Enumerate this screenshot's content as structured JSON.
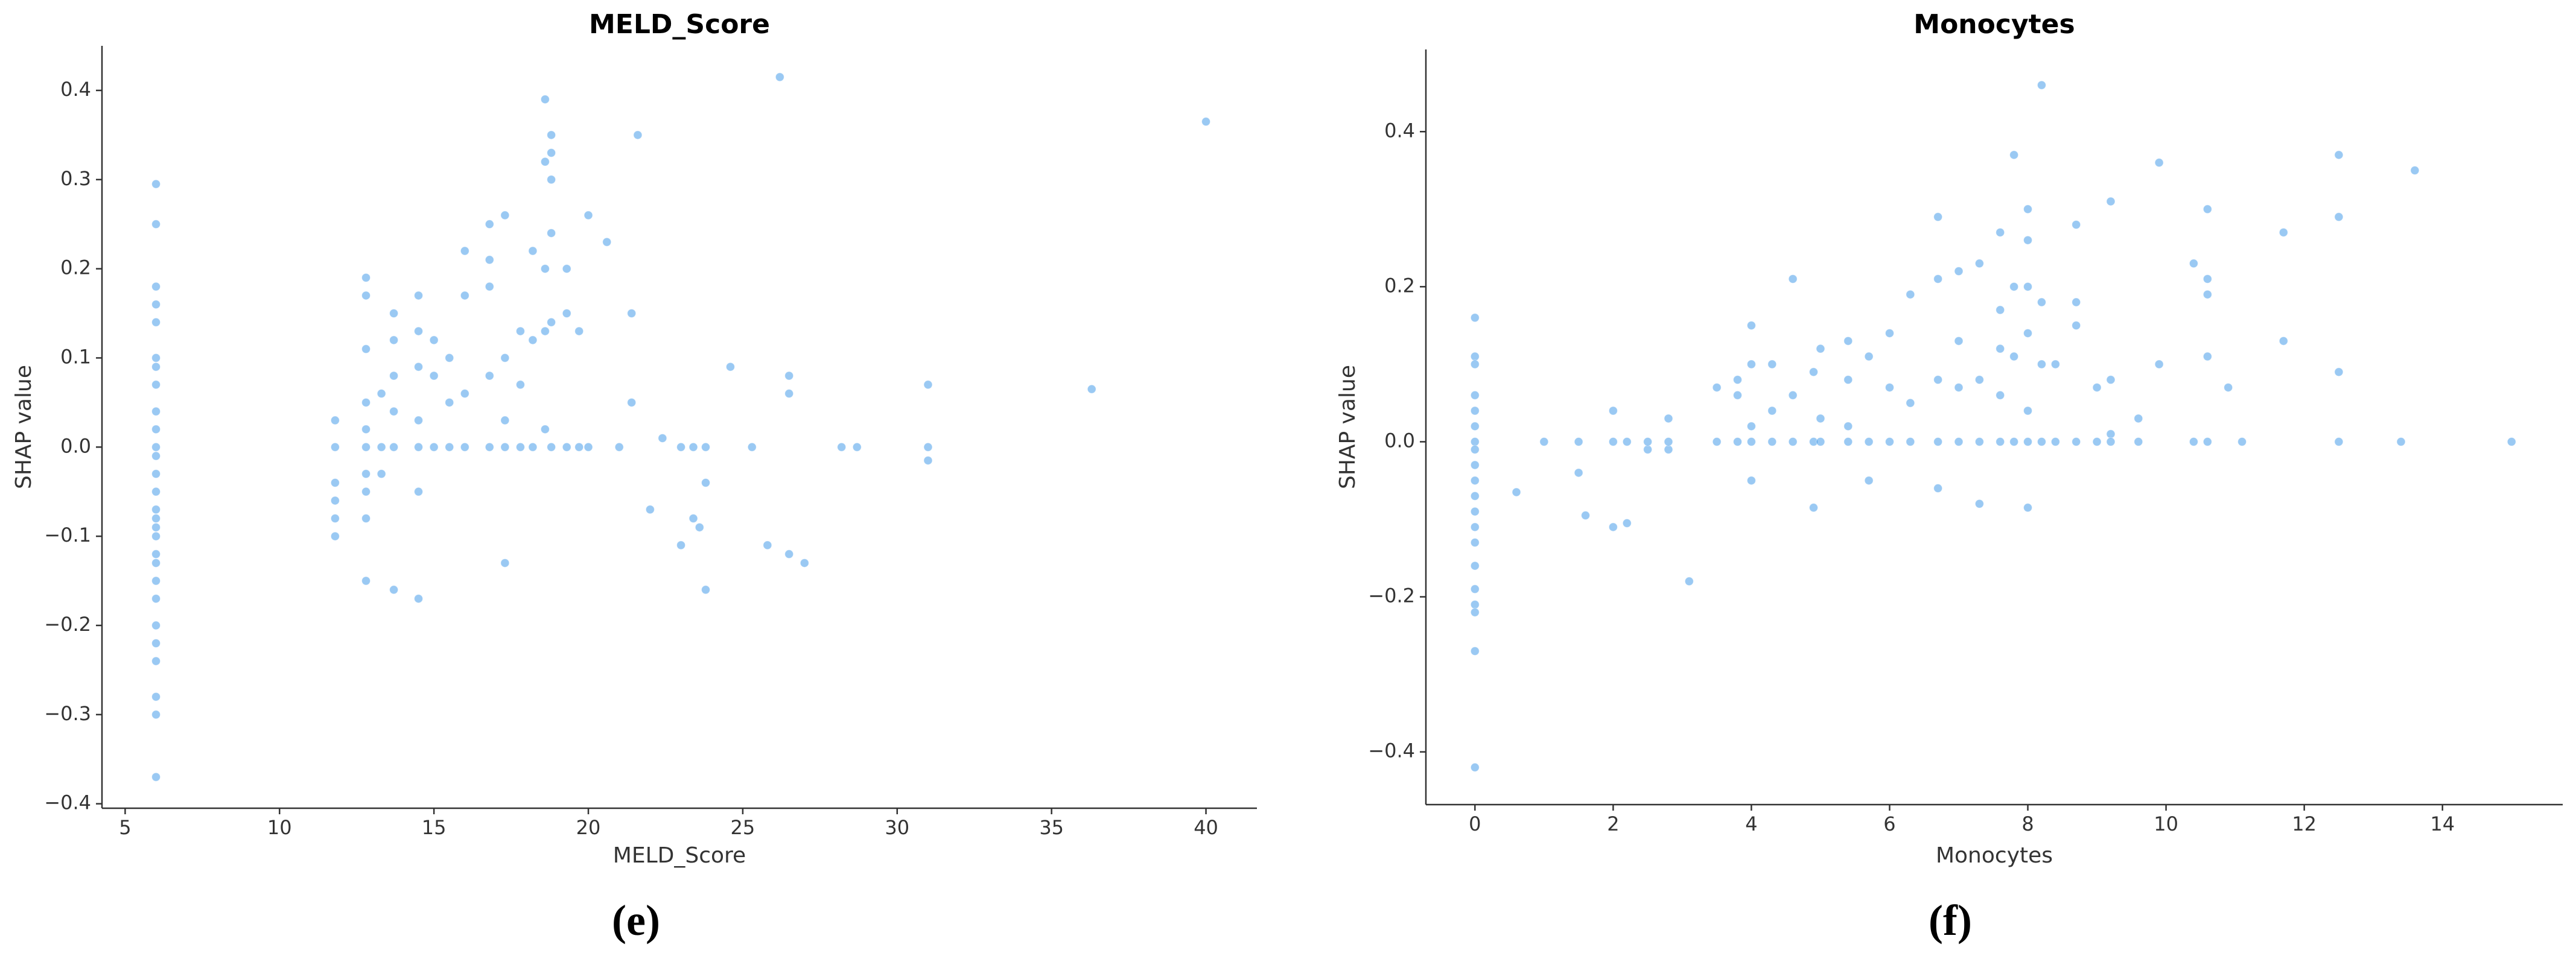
{
  "chart_data": [
    {
      "type": "scatter",
      "title": "MELD_Score",
      "x_label": "MELD_Score",
      "y_label": "SHAP value",
      "caption": "(e)",
      "color": "#1e88e5",
      "xlim": [
        4.25,
        41.65
      ],
      "ylim": [
        -0.405,
        0.45
      ],
      "xticks": [
        5,
        10,
        15,
        20,
        25,
        30,
        35,
        40
      ],
      "yticks": [
        {
          "value": -0.4,
          "label": "−0.4"
        },
        {
          "value": -0.3,
          "label": "−0.3"
        },
        {
          "value": -0.2,
          "label": "−0.2"
        },
        {
          "value": -0.1,
          "label": "−0.1"
        },
        {
          "value": 0,
          "label": "0.0"
        },
        0.1,
        0.2,
        0.3,
        0.4
      ],
      "x": [
        6,
        6,
        6,
        6,
        6,
        6,
        6,
        6,
        6,
        6,
        6,
        6,
        6,
        6,
        6,
        6,
        6,
        6,
        6,
        6,
        6,
        6,
        6,
        6,
        6,
        6,
        6,
        6,
        11.8,
        11.8,
        11.8,
        11.8,
        11.8,
        11.8,
        12.8,
        12.8,
        12.8,
        12.8,
        12.8,
        12.8,
        12.8,
        12.8,
        12.8,
        12.8,
        13.3,
        13.3,
        13.3,
        13.7,
        13.7,
        13.7,
        13.7,
        13.7,
        13.7,
        14.5,
        14.5,
        14.5,
        14.5,
        14.5,
        14.5,
        14.5,
        15,
        15,
        15,
        15.5,
        15.5,
        15.5,
        16,
        16,
        16,
        16,
        16.8,
        16.8,
        16.8,
        16.8,
        16.8,
        17.3,
        17.3,
        17.3,
        17.3,
        17.3,
        17.8,
        17.8,
        17.8,
        18.2,
        18.2,
        18.2,
        18.6,
        18.6,
        18.6,
        18.6,
        18.6,
        18.8,
        18.8,
        18.8,
        18.8,
        18.8,
        18.8,
        19.3,
        19.3,
        19.3,
        19.7,
        19.7,
        20,
        20,
        20.6,
        21,
        21.4,
        21.4,
        21.6,
        22,
        22.4,
        23,
        23,
        23.4,
        23.4,
        23.6,
        23.8,
        23.8,
        23.8,
        24.6,
        25.3,
        25.8,
        26.2,
        26.5,
        26.5,
        26.5,
        27,
        28.2,
        28.7,
        31,
        31,
        31,
        36.3,
        40
      ],
      "values": [
        0.295,
        0.25,
        0.18,
        0.16,
        0.14,
        0.1,
        0.09,
        0.07,
        0.04,
        0.02,
        0,
        -0.01,
        -0.03,
        -0.05,
        -0.07,
        -0.08,
        -0.09,
        -0.1,
        -0.12,
        -0.13,
        -0.15,
        -0.17,
        -0.2,
        -0.22,
        -0.24,
        -0.28,
        -0.3,
        -0.37,
        0.03,
        0,
        -0.04,
        -0.06,
        -0.08,
        -0.1,
        0.19,
        0.17,
        0.11,
        0.05,
        0.02,
        0,
        -0.03,
        -0.05,
        -0.08,
        -0.15,
        0,
        0.06,
        -0.03,
        0.15,
        0.12,
        0.08,
        0.04,
        0,
        -0.16,
        0.17,
        0.13,
        0.09,
        0.03,
        0,
        -0.05,
        -0.17,
        0.12,
        0.08,
        0,
        0.1,
        0.05,
        0,
        0.22,
        0.17,
        0.06,
        0,
        0.25,
        0.21,
        0.18,
        0.08,
        0,
        0.26,
        0.1,
        0.03,
        0,
        -0.13,
        0.13,
        0.07,
        0,
        0.22,
        0.12,
        0,
        0.39,
        0.32,
        0.2,
        0.13,
        0.02,
        0.35,
        0.33,
        0.3,
        0.24,
        0.14,
        0,
        0.2,
        0.15,
        0,
        0.13,
        0,
        0.26,
        0,
        0.23,
        0,
        0.15,
        0.05,
        0.35,
        -0.07,
        0.01,
        -0.11,
        0,
        -0.08,
        0,
        -0.09,
        -0.16,
        -0.04,
        0,
        0.09,
        0,
        -0.11,
        0.415,
        0.08,
        0.06,
        -0.12,
        -0.13,
        0,
        0,
        0.07,
        0,
        -0.015,
        0.065,
        0.365
      ]
    },
    {
      "type": "scatter",
      "title": "Monocytes",
      "x_label": "Monocytes",
      "y_label": "SHAP value",
      "caption": "(f)",
      "color": "#1e88e5",
      "xlim": [
        -0.71,
        15.74
      ],
      "ylim": [
        -0.468,
        0.506
      ],
      "xticks": [
        0,
        2,
        4,
        6,
        8,
        10,
        12,
        14
      ],
      "yticks": [
        {
          "value": -0.4,
          "label": "−0.4"
        },
        {
          "value": -0.2,
          "label": "−0.2"
        },
        {
          "value": 0,
          "label": "0.0"
        },
        0.2,
        0.4
      ],
      "x": [
        0,
        0,
        0,
        0,
        0,
        0,
        0,
        0,
        0,
        0,
        0,
        0,
        0,
        0,
        0,
        0,
        0,
        0,
        0,
        0,
        0.6,
        1,
        1.5,
        1.5,
        1.6,
        2,
        2,
        2,
        2.2,
        2.2,
        2.5,
        2.5,
        2.8,
        2.8,
        2.8,
        3.1,
        3.5,
        3.5,
        3.8,
        3.8,
        3.8,
        4,
        4,
        4,
        4,
        4,
        4.3,
        4.3,
        4.3,
        4.6,
        4.6,
        4.6,
        4.9,
        4.9,
        4.9,
        5,
        5,
        5,
        5.4,
        5.4,
        5.4,
        5.4,
        5.7,
        5.7,
        5.7,
        6,
        6,
        6,
        6.3,
        6.3,
        6.3,
        6.7,
        6.7,
        6.7,
        6.7,
        6.7,
        7,
        7,
        7,
        7,
        7.3,
        7.3,
        7.3,
        7.3,
        7.6,
        7.6,
        7.6,
        7.6,
        7.6,
        7.8,
        7.8,
        7.8,
        7.8,
        8,
        8,
        8,
        8,
        8,
        8,
        8,
        8.2,
        8.2,
        8.2,
        8.2,
        8.4,
        8.4,
        8.7,
        8.7,
        8.7,
        8.7,
        9,
        9,
        9.2,
        9.2,
        9.2,
        9.2,
        9.6,
        9.6,
        9.9,
        9.9,
        10.4,
        10.4,
        10.6,
        10.6,
        10.6,
        10.6,
        10.6,
        10.9,
        11.1,
        11.7,
        11.7,
        12.5,
        12.5,
        12.5,
        12.5,
        13.4,
        13.6,
        15
      ],
      "values": [
        0.16,
        0.11,
        0.1,
        0.06,
        0.04,
        0.02,
        0,
        -0.01,
        -0.03,
        -0.05,
        -0.07,
        -0.09,
        -0.11,
        -0.13,
        -0.16,
        -0.19,
        -0.21,
        -0.22,
        -0.27,
        -0.42,
        -0.065,
        0,
        -0.04,
        0,
        -0.095,
        -0.11,
        0.04,
        0,
        -0.105,
        0,
        -0.01,
        0,
        0.03,
        -0.01,
        0,
        -0.18,
        0.07,
        0,
        0.08,
        0.06,
        0,
        -0.05,
        0.15,
        0.1,
        0.02,
        0,
        0.1,
        0.04,
        0,
        0.21,
        0.06,
        0,
        0.09,
        -0.085,
        0,
        0.12,
        0.03,
        0,
        0.13,
        0.08,
        0.02,
        0,
        -0.05,
        0.11,
        0,
        0.14,
        0.07,
        0,
        0.19,
        0.05,
        0,
        0.29,
        0.21,
        0.08,
        -0.06,
        0,
        0.22,
        0.13,
        0.07,
        0,
        0.23,
        0.08,
        -0.08,
        0,
        0.27,
        0.17,
        0.12,
        0.06,
        0,
        0.37,
        0.2,
        0.11,
        0,
        0.3,
        0.26,
        0.2,
        0.14,
        0.04,
        -0.085,
        0,
        0.46,
        0.18,
        0.1,
        0,
        0.1,
        0,
        0.28,
        0.18,
        0.15,
        0,
        0.07,
        0,
        0.31,
        0.08,
        0.01,
        0,
        0.03,
        0,
        0.36,
        0.1,
        0.23,
        0,
        0.3,
        0.21,
        0.19,
        0.11,
        0,
        0.07,
        0,
        0.27,
        0.13,
        0.37,
        0.29,
        0.09,
        0,
        0,
        0.35,
        0
      ]
    }
  ]
}
